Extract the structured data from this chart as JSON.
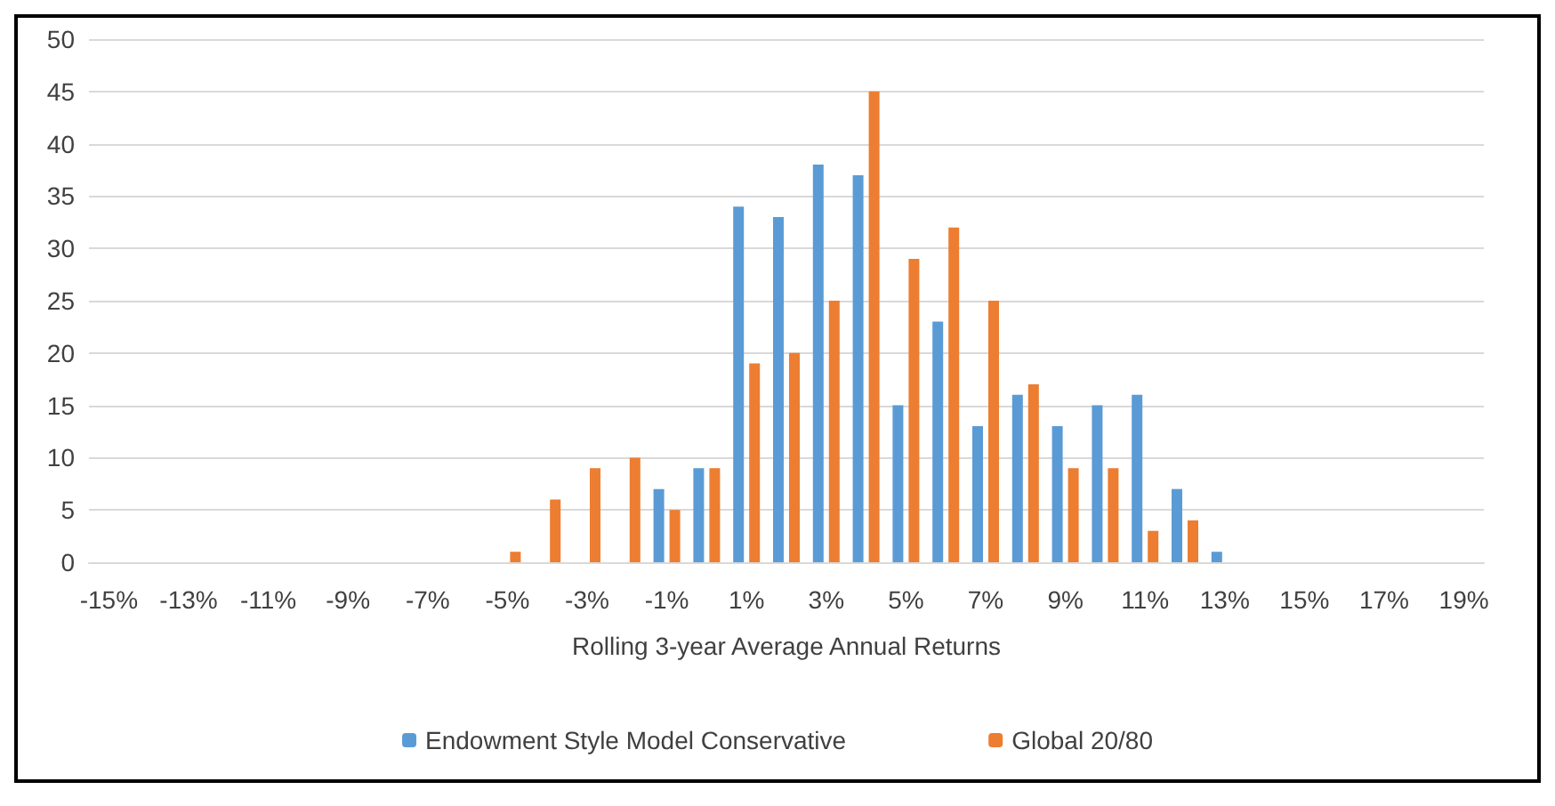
{
  "chart_data": {
    "type": "bar",
    "xlabel": "Rolling 3-year Average Annual Returns",
    "categories": [
      "-15%",
      null,
      "-13%",
      null,
      "-11%",
      null,
      "-9%",
      null,
      "-7%",
      null,
      "-5%",
      null,
      "-3%",
      null,
      "-1%",
      null,
      "1%",
      null,
      "3%",
      null,
      "5%",
      null,
      "7%",
      null,
      "9%",
      null,
      "11%",
      null,
      "13%",
      null,
      "15%",
      null,
      "17%",
      null,
      "19%"
    ],
    "series": [
      {
        "name": "Endowment Style Model Conservative",
        "color": "#5b9bd5",
        "values": [
          0,
          0,
          0,
          0,
          0,
          0,
          0,
          0,
          0,
          0,
          0,
          0,
          0,
          0,
          7,
          9,
          34,
          33,
          38,
          37,
          15,
          23,
          13,
          16,
          13,
          15,
          16,
          7,
          1,
          0,
          0,
          0,
          0,
          0,
          0
        ]
      },
      {
        "name": "Global 20/80",
        "color": "#ed7d31",
        "values": [
          0,
          0,
          0,
          0,
          0,
          0,
          0,
          0,
          0,
          0,
          1,
          6,
          9,
          10,
          5,
          9,
          19,
          20,
          25,
          45,
          29,
          32,
          25,
          17,
          9,
          9,
          3,
          4,
          0,
          0,
          0,
          0,
          0,
          0,
          0
        ]
      }
    ],
    "ylim": [
      0,
      50
    ],
    "yticks": [
      0,
      5,
      10,
      15,
      20,
      25,
      30,
      35,
      40,
      45,
      50
    ],
    "grid": "y",
    "legend": "bottom"
  }
}
